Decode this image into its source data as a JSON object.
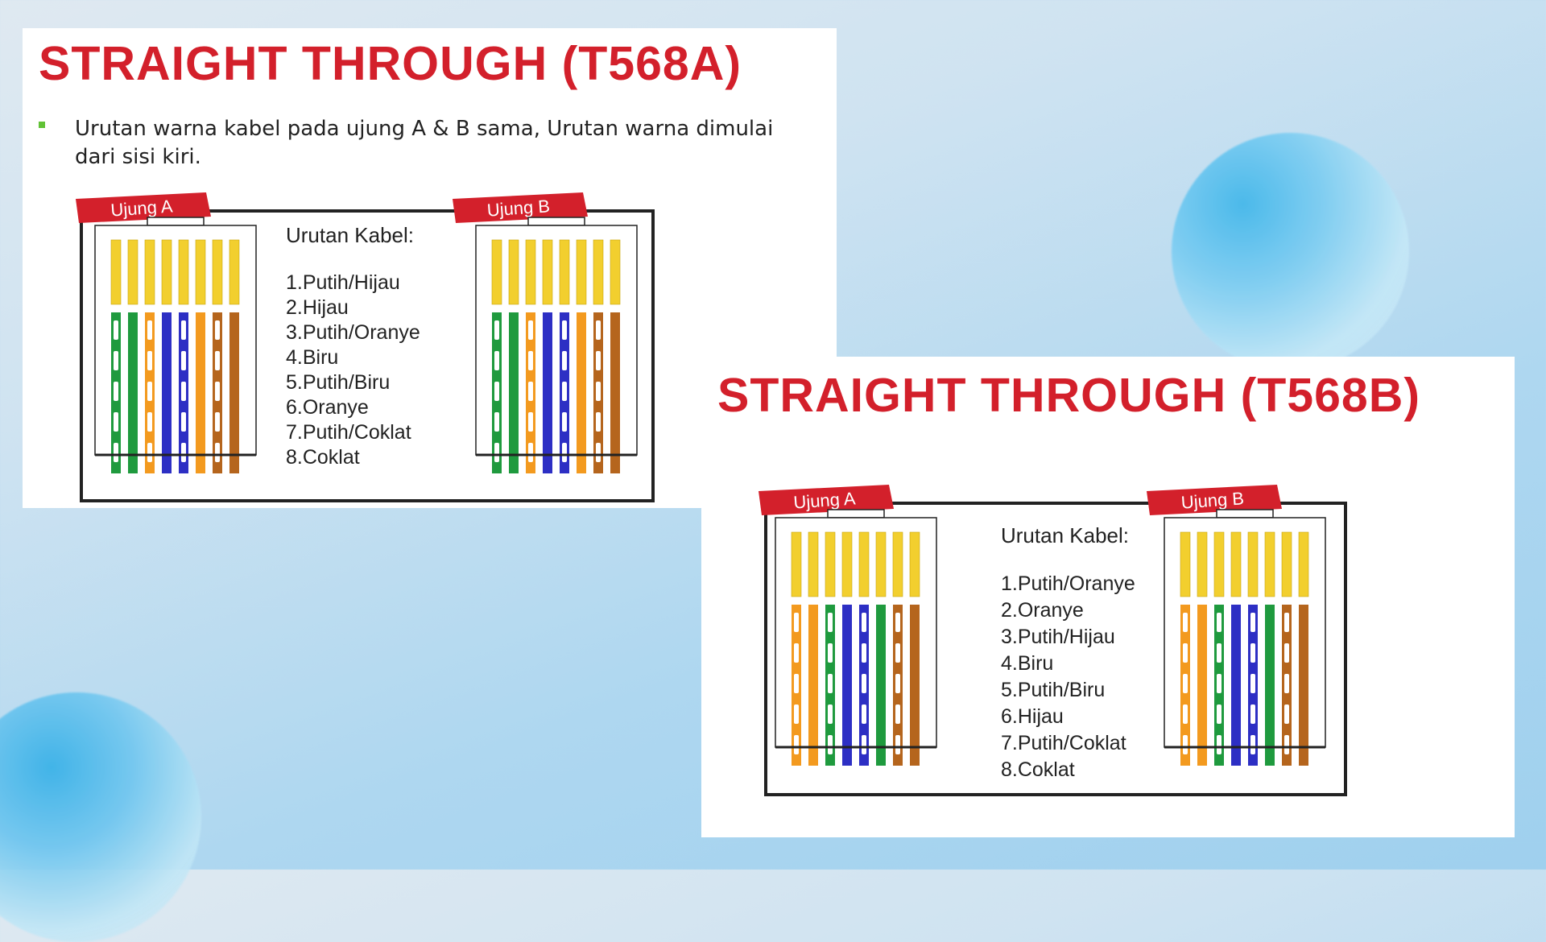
{
  "slide1": {
    "title": "STRAIGHT THROUGH (T568A)",
    "bullet": "Urutan warna kabel pada ujung A & B sama, Urutan warna dimulai dari sisi kiri.",
    "end_a_label": "Ujung A",
    "end_b_label": "Ujung B",
    "list_heading": "Urutan Kabel:",
    "items": [
      "1.Putih/Hijau",
      "2.Hijau",
      "3.Putih/Oranye",
      "4.Biru",
      "5.Putih/Biru",
      "6.Oranye",
      "7.Putih/Coklat",
      "8.Coklat"
    ],
    "wires": [
      {
        "color": "#1f9a3e",
        "striped": true
      },
      {
        "color": "#1f9a3e",
        "striped": false
      },
      {
        "color": "#f39a1f",
        "striped": true
      },
      {
        "color": "#2d2fc4",
        "striped": false
      },
      {
        "color": "#2d2fc4",
        "striped": true
      },
      {
        "color": "#f39a1f",
        "striped": false
      },
      {
        "color": "#b5651d",
        "striped": true
      },
      {
        "color": "#b5651d",
        "striped": false
      }
    ]
  },
  "slide2": {
    "title": "STRAIGHT THROUGH (T568B)",
    "end_a_label": "Ujung A",
    "end_b_label": "Ujung B",
    "list_heading": "Urutan Kabel:",
    "items": [
      "1.Putih/Oranye",
      "2.Oranye",
      "3.Putih/Hijau",
      "4.Biru",
      "5.Putih/Biru",
      "6.Hijau",
      "7.Putih/Coklat",
      "8.Coklat"
    ],
    "wires": [
      {
        "color": "#f39a1f",
        "striped": true
      },
      {
        "color": "#f39a1f",
        "striped": false
      },
      {
        "color": "#1f9a3e",
        "striped": true
      },
      {
        "color": "#2d2fc4",
        "striped": false
      },
      {
        "color": "#2d2fc4",
        "striped": true
      },
      {
        "color": "#1f9a3e",
        "striped": false
      },
      {
        "color": "#b5651d",
        "striped": true
      },
      {
        "color": "#b5651d",
        "striped": false
      }
    ]
  },
  "colors": {
    "title_red": "#d3202b",
    "pin_gold": "#f2cf2e",
    "bullet_green": "#61c236",
    "label_red": "#d3202b"
  }
}
